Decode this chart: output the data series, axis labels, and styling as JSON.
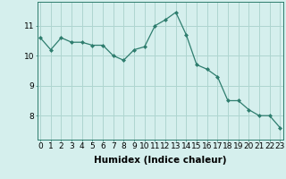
{
  "x": [
    0,
    1,
    2,
    3,
    4,
    5,
    6,
    7,
    8,
    9,
    10,
    11,
    12,
    13,
    14,
    15,
    16,
    17,
    18,
    19,
    20,
    21,
    22,
    23
  ],
  "y": [
    10.6,
    10.2,
    10.6,
    10.45,
    10.45,
    10.35,
    10.35,
    10.0,
    9.85,
    10.2,
    10.3,
    11.0,
    11.2,
    11.45,
    10.7,
    9.7,
    9.55,
    9.3,
    8.5,
    8.5,
    8.2,
    8.0,
    8.0,
    7.6
  ],
  "line_color": "#2e7d6e",
  "marker": "D",
  "marker_size": 2.0,
  "bg_color": "#d5efed",
  "grid_color": "#aed5d0",
  "xlabel": "Humidex (Indice chaleur)",
  "xlabel_fontsize": 7.5,
  "tick_fontsize": 6.5,
  "ylim": [
    7.2,
    11.8
  ],
  "yticks": [
    8,
    9,
    10,
    11
  ],
  "xticks": [
    0,
    1,
    2,
    3,
    4,
    5,
    6,
    7,
    8,
    9,
    10,
    11,
    12,
    13,
    14,
    15,
    16,
    17,
    18,
    19,
    20,
    21,
    22,
    23
  ],
  "xlim": [
    -0.3,
    23.3
  ]
}
